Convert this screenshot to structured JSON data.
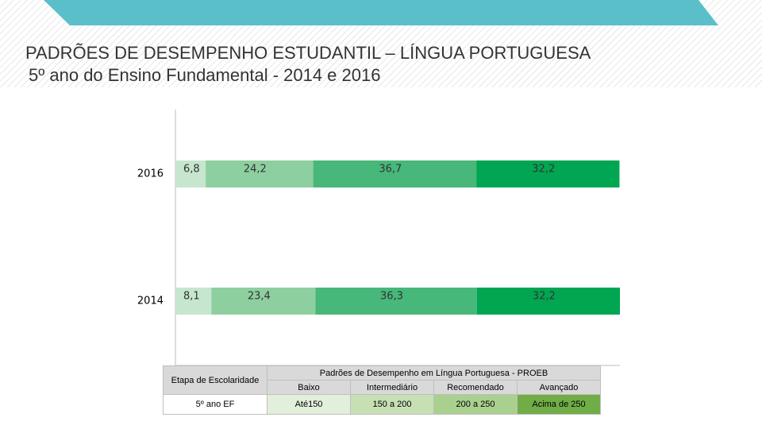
{
  "header": {
    "title": "PADRÕES DE DESEMPENHO ESTUDANTIL – LÍNGUA PORTUGUESA",
    "subtitle": "5º ano do Ensino Fundamental  -  2014 e 2016"
  },
  "chart_data": {
    "type": "stacked-bar-horizontal",
    "categories": [
      "2016",
      "2014"
    ],
    "xlim": [
      0,
      100
    ],
    "series": [
      {
        "color": "#c6e6cf",
        "values": [
          6.8,
          8.1
        ],
        "value_labels": [
          "6,8",
          "8,1"
        ]
      },
      {
        "color": "#8ecf9f",
        "values": [
          24.2,
          23.4
        ],
        "value_labels": [
          "24,2",
          "23,4"
        ]
      },
      {
        "color": "#47b879",
        "values": [
          36.7,
          36.3
        ],
        "value_labels": [
          "36,7",
          "36,3"
        ]
      },
      {
        "color": "#00a651",
        "values": [
          32.2,
          32.2
        ],
        "value_labels": [
          "32,2",
          "32,2"
        ]
      }
    ]
  },
  "table": {
    "title": "Padrões de Desempenho em Língua Portuguesa  -  PROEB",
    "first_header": "Etapa de Escolaridade",
    "columns": [
      "Baixo",
      "Intermediário",
      "Recomendado",
      "Avançado"
    ],
    "rows": [
      [
        "5º ano EF",
        "Até150",
        "150  a 200",
        "200  a 250",
        "Acima de 250"
      ]
    ]
  }
}
